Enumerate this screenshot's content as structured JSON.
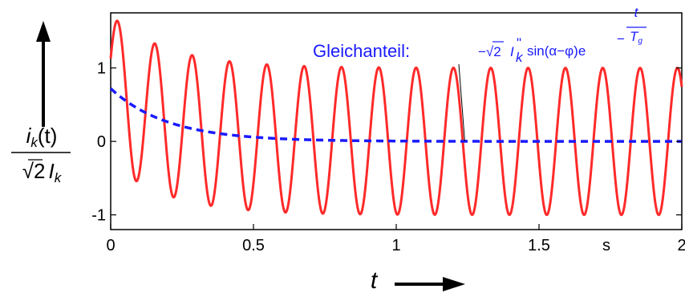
{
  "chart_data": {
    "type": "line",
    "x_range": [
      0,
      2
    ],
    "y_range": [
      -1.2,
      1.75
    ],
    "x_ticks": [
      {
        "value": 0,
        "label": "0"
      },
      {
        "value": 0.5,
        "label": "0.5"
      },
      {
        "value": 1,
        "label": "1"
      },
      {
        "value": 1.5,
        "label": "1.5"
      },
      {
        "value": 2,
        "label": "2"
      }
    ],
    "x_unit_label": "s",
    "y_ticks": [
      {
        "value": 1,
        "label": "1"
      },
      {
        "value": 0,
        "label": "0"
      },
      {
        "value": -1,
        "label": "-1"
      }
    ],
    "xlabel": "t",
    "ylabel": {
      "numerator_main": "i",
      "numerator_sub": "k",
      "numerator_arg": "(t)",
      "denominator_root": "√",
      "denominator_num": "2",
      "denominator_main": "I",
      "denominator_sub": "k"
    },
    "grid": false,
    "series": [
      {
        "style": "solid",
        "color": "#ff2a2a",
        "model": "cos(2*pi*f*t + phase) + dc",
        "frequency_hz": 7.65,
        "phase_rad": -1.15
      },
      {
        "style": "dashed",
        "color": "#1a1aff",
        "model": "dc",
        "initial_value": 0.72,
        "time_constant_s": 0.2
      }
    ],
    "annotation": {
      "label": "Gleichanteil:",
      "formula_prefix": "−√2",
      "formula_var": "I",
      "formula_sup": "\"",
      "formula_sub": "k",
      "formula_func": "sin(α−φ)e",
      "exponent_sign": "−",
      "exponent_num": "t",
      "exponent_den_main": "T",
      "exponent_den_sub": "g",
      "points_to_x": 1.24
    }
  }
}
